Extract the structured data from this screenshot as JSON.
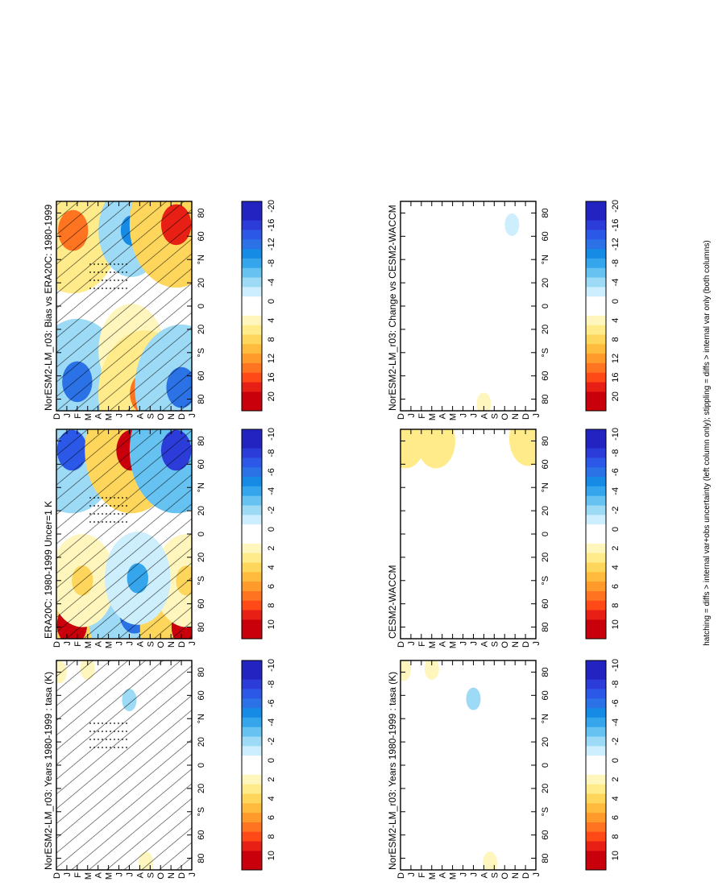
{
  "footnote": "hatching = diffs > internal var+obs uncertainty (left column only); stippling = diffs > internal var only (both columns)",
  "y_axis": {
    "ticks": [
      {
        "value": -80,
        "label": "80"
      },
      {
        "value": -60,
        "label": "60"
      },
      {
        "value": -40,
        "label": "°S"
      },
      {
        "value": -20,
        "label": "20"
      },
      {
        "value": 0,
        "label": "0"
      },
      {
        "value": 20,
        "label": "20"
      },
      {
        "value": 40,
        "label": "°N"
      },
      {
        "value": 60,
        "label": "60"
      },
      {
        "value": 80,
        "label": "80"
      }
    ]
  },
  "month_labels": [
    "D",
    "J",
    "F",
    "M",
    "A",
    "M",
    "J",
    "J",
    "A",
    "S",
    "O",
    "N",
    "D",
    "J"
  ],
  "palette_warm": [
    "#ffffff",
    "#fff6bd",
    "#ffeb8a",
    "#ffd65c",
    "#ffbb3d",
    "#ff9a2b",
    "#ff7420",
    "#ff4a18",
    "#e81f14",
    "#c9000c"
  ],
  "palette_cool": [
    "#ffffff",
    "#cdeefc",
    "#9ddaf5",
    "#66c2f0",
    "#35a6ec",
    "#168be6",
    "#2a72e6",
    "#2b58e6",
    "#2b3cd8",
    "#2323c2"
  ],
  "colorbar_labels_small": [
    "10",
    "8",
    "6",
    "4",
    "2",
    "0",
    "-2",
    "-4",
    "-6",
    "-8",
    "-10"
  ],
  "colorbar_labels_large": [
    "20",
    "16",
    "12",
    "8",
    "4",
    "0",
    "-4",
    "-8",
    "-12",
    "-16",
    "-20"
  ],
  "chart_data": [
    {
      "type": "heatmap",
      "title": "NorESM2-LM_r03: Years 1980-1999 : tasa (K)",
      "xlabel": "",
      "ylabel": "",
      "x": [
        "D",
        "J",
        "F",
        "M",
        "A",
        "M",
        "J",
        "J",
        "A",
        "S",
        "O",
        "N",
        "D",
        "J"
      ],
      "ylim": [
        -90,
        90
      ],
      "colorbar": {
        "range": [
          -11,
          11
        ],
        "labels": [
          "10",
          "8",
          "6",
          "4",
          "2",
          "0",
          "-2",
          "-4",
          "-6",
          "-8",
          "-10"
        ]
      },
      "hatching": true,
      "stippling": true,
      "features": [
        {
          "month": 0.3,
          "lat": 80,
          "value": 1.5
        },
        {
          "month": 3.0,
          "lat": 83,
          "value": 1.5
        },
        {
          "month": 8.6,
          "lat": -84,
          "value": 1.5
        },
        {
          "month": 7.0,
          "lat": 56,
          "value": -2.0
        }
      ]
    },
    {
      "type": "heatmap",
      "title": "NorESM2-LM_r03: Years 1980-1999 : tasa (K)",
      "xlabel": "",
      "ylabel": "",
      "x": [
        "D",
        "J",
        "F",
        "M",
        "A",
        "M",
        "J",
        "J",
        "A",
        "S",
        "O",
        "N",
        "D",
        "J"
      ],
      "ylim": [
        -90,
        90
      ],
      "colorbar": {
        "range": [
          -11,
          11
        ],
        "labels": [
          "10",
          "8",
          "6",
          "4",
          "2",
          "0",
          "-2",
          "-4",
          "-6",
          "-8",
          "-10"
        ]
      },
      "features": [
        {
          "month": 0.3,
          "lat": 82,
          "value": 1.5
        },
        {
          "month": 3.0,
          "lat": 83,
          "value": 1.5
        },
        {
          "month": 8.6,
          "lat": -84,
          "value": 1.5
        },
        {
          "month": 7.0,
          "lat": 57,
          "value": -2.0
        }
      ]
    },
    {
      "type": "heatmap",
      "title": "ERA20C: 1980-1999 Uncer=1 K",
      "xlabel": "",
      "ylabel": "",
      "x": [
        "D",
        "J",
        "F",
        "M",
        "A",
        "M",
        "J",
        "J",
        "A",
        "S",
        "O",
        "N",
        "D",
        "J"
      ],
      "ylim": [
        -90,
        90
      ],
      "colorbar": {
        "range": [
          -11,
          11
        ],
        "labels": [
          "10",
          "8",
          "6",
          "4",
          "2",
          "0",
          "-2",
          "-4",
          "-6",
          "-8",
          "-10"
        ]
      },
      "hatching": true,
      "stippling": true,
      "features": [
        {
          "month": 1.5,
          "lat": 72,
          "value": -8.0
        },
        {
          "month": 7.2,
          "lat": 72,
          "value": 11.0
        },
        {
          "month": 11.5,
          "lat": 72,
          "value": -9.0
        },
        {
          "month": 1.5,
          "lat": -78,
          "value": 11.0
        },
        {
          "month": 7.5,
          "lat": -68,
          "value": -6.5
        },
        {
          "month": 12.5,
          "lat": -80,
          "value": 11.0
        },
        {
          "month": 2.5,
          "lat": -40,
          "value": 3.5
        },
        {
          "month": 12.5,
          "lat": -40,
          "value": 3.5
        },
        {
          "month": 7.8,
          "lat": -38,
          "value": -4.0
        }
      ]
    },
    {
      "type": "heatmap",
      "title": "CESM2-WACCM",
      "xlabel": "",
      "ylabel": "",
      "x": [
        "D",
        "J",
        "F",
        "M",
        "A",
        "M",
        "J",
        "J",
        "A",
        "S",
        "O",
        "N",
        "D",
        "J"
      ],
      "ylim": [
        -90,
        90
      ],
      "colorbar": {
        "range": [
          -11,
          11
        ],
        "labels": [
          "10",
          "8",
          "6",
          "4",
          "2",
          "0",
          "-2",
          "-4",
          "-6",
          "-8",
          "-10"
        ]
      },
      "features": [
        {
          "month": 0.5,
          "lat": 80,
          "value": 2.5
        },
        {
          "month": 3.4,
          "lat": 80,
          "value": 2.5
        },
        {
          "month": 12.3,
          "lat": 82,
          "value": 2.5
        }
      ]
    },
    {
      "type": "heatmap",
      "title": "NorESM2-LM_r03: Bias vs ERA20C: 1980-1999",
      "xlabel": "",
      "ylabel": "",
      "x": [
        "D",
        "J",
        "F",
        "M",
        "A",
        "M",
        "J",
        "J",
        "A",
        "S",
        "O",
        "N",
        "D",
        "J"
      ],
      "ylim": [
        -90,
        90
      ],
      "colorbar": {
        "range": [
          -22,
          22
        ],
        "labels": [
          "20",
          "16",
          "12",
          "8",
          "4",
          "0",
          "-4",
          "-8",
          "-12",
          "-16",
          "-20"
        ]
      },
      "hatching": true,
      "stippling": true,
      "features": [
        {
          "month": 1.6,
          "lat": 65,
          "value": 14.0
        },
        {
          "month": 7.2,
          "lat": 65,
          "value": -11.0
        },
        {
          "month": 11.5,
          "lat": 70,
          "value": 17.0
        },
        {
          "month": 2.0,
          "lat": -65,
          "value": -14.0
        },
        {
          "month": 7.2,
          "lat": -38,
          "value": 8.0
        },
        {
          "month": 8.5,
          "lat": -75,
          "value": 13.0
        },
        {
          "month": 12.0,
          "lat": -70,
          "value": -14.0
        }
      ]
    },
    {
      "type": "heatmap",
      "title": "NorESM2-LM_r03: Change vs CESM2-WACCM",
      "xlabel": "",
      "ylabel": "",
      "x": [
        "D",
        "J",
        "F",
        "M",
        "A",
        "M",
        "J",
        "J",
        "A",
        "S",
        "O",
        "N",
        "D",
        "J"
      ],
      "ylim": [
        -90,
        90
      ],
      "colorbar": {
        "range": [
          -22,
          22
        ],
        "labels": [
          "20",
          "16",
          "12",
          "8",
          "4",
          "0",
          "-4",
          "-8",
          "-12",
          "-16",
          "-20"
        ]
      },
      "features": [
        {
          "month": 10.7,
          "lat": 70,
          "value": -3.0
        },
        {
          "month": 8.0,
          "lat": -84,
          "value": 3.0
        }
      ]
    }
  ]
}
